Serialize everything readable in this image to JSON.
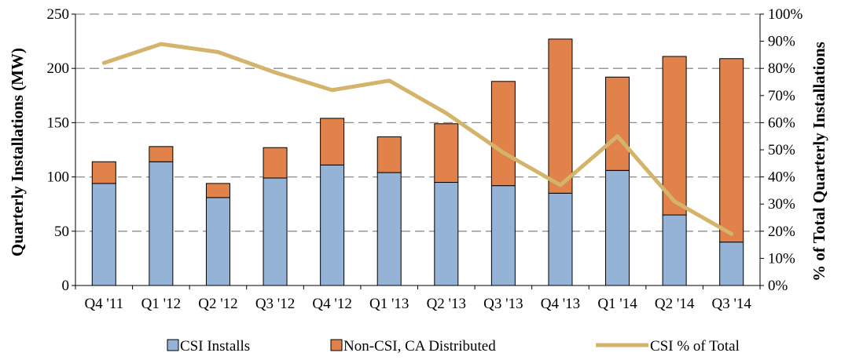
{
  "chart_data": {
    "type": "bar",
    "stacked": true,
    "title": "",
    "categories": [
      "Q4 '11",
      "Q1 '12",
      "Q2 '12",
      "Q3 '12",
      "Q4 '12",
      "Q1 '13",
      "Q2 '13",
      "Q3 '13",
      "Q4 '13",
      "Q1 '14",
      "Q2 '14",
      "Q3 '14"
    ],
    "series": [
      {
        "name": "CSI Installs",
        "kind": "bar",
        "axis": "left",
        "color": "#95b3d7",
        "values": [
          94,
          114,
          81,
          99,
          111,
          104,
          95,
          92,
          85,
          106,
          65,
          40
        ]
      },
      {
        "name": "Non-CSI, CA Distributed",
        "kind": "bar",
        "axis": "left",
        "color": "#e0824a",
        "values": [
          20,
          14,
          13,
          28,
          43,
          33,
          54,
          96,
          142,
          86,
          146,
          169
        ]
      },
      {
        "name": "CSI % of Total",
        "kind": "line",
        "axis": "right",
        "color": "#d4b36a",
        "values": [
          0.82,
          0.89,
          0.86,
          0.785,
          0.72,
          0.755,
          0.635,
          0.49,
          0.37,
          0.55,
          0.31,
          0.19
        ]
      }
    ],
    "ylabel": "Quarterly Installations (MW)",
    "y2label": "% of Total Quarterly Installations",
    "ylim": [
      0,
      250
    ],
    "y2lim": [
      0,
      1
    ],
    "yticks": [
      "0",
      "50",
      "100",
      "150",
      "200",
      "250"
    ],
    "y2ticks": [
      "0%",
      "10%",
      "20%",
      "30%",
      "40%",
      "50%",
      "60%",
      "70%",
      "80%",
      "90%",
      "100%"
    ],
    "grid": true,
    "legend_position": "bottom"
  }
}
